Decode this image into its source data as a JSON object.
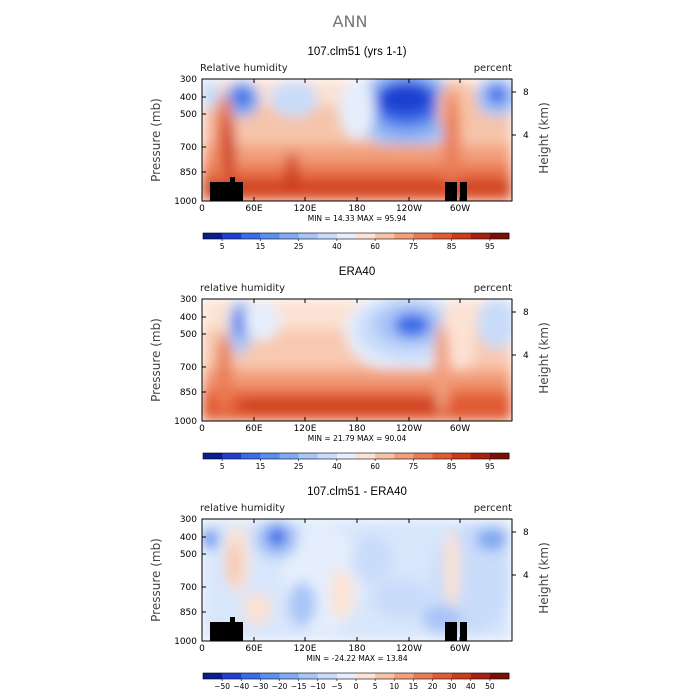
{
  "figure": {
    "title": "ANN"
  },
  "chart_data": [
    {
      "type": "heatmap",
      "title": "107.clm51 (yrs 1-1)",
      "variable_label": "Relative humidity",
      "units_label": "percent",
      "ylabel": "Pressure (mb)",
      "ylabel_right": "Height (km)",
      "x_ticks": [
        "0",
        "60E",
        "120E",
        "180",
        "120W",
        "60W"
      ],
      "y_ticks": [
        "300",
        "400",
        "500",
        "700",
        "850",
        "1000"
      ],
      "y_right_ticks": [
        "8",
        "4"
      ],
      "min_label": "MIN =",
      "min_value": "14.33",
      "max_label": "MAX =",
      "max_value": "95.94",
      "colorbar_labels": [
        "5",
        "15",
        "25",
        "40",
        "60",
        "75",
        "85",
        "95"
      ],
      "colorbar_colors": [
        "#0a1d8f",
        "#1f3fd2",
        "#3b6ce8",
        "#5c8ef0",
        "#82aaf2",
        "#a8c5f7",
        "#c9dcfa",
        "#e5eefc",
        "#fce2d3",
        "#f8c2a4",
        "#f29f7a",
        "#ea7b54",
        "#e05a33",
        "#cc3b1b",
        "#a82110",
        "#7a1008"
      ],
      "mask_boxes": [
        [
          8,
          28,
          19
        ],
        [
          28,
          33,
          24
        ],
        [
          33,
          41,
          19
        ],
        [
          243,
          255,
          19
        ],
        [
          258,
          265,
          19
        ]
      ]
    },
    {
      "type": "heatmap",
      "title": "ERA40",
      "variable_label": "relative humidity",
      "units_label": "percent",
      "ylabel": "Pressure (mb)",
      "ylabel_right": "Height (km)",
      "x_ticks": [
        "0",
        "60E",
        "120E",
        "180",
        "120W",
        "60W"
      ],
      "y_ticks": [
        "300",
        "400",
        "500",
        "700",
        "850",
        "1000"
      ],
      "y_right_ticks": [
        "8",
        "4"
      ],
      "min_label": "MIN =",
      "min_value": "21.79",
      "max_label": "MAX =",
      "max_value": "90.04",
      "colorbar_labels": [
        "5",
        "15",
        "25",
        "40",
        "60",
        "75",
        "85",
        "95"
      ],
      "colorbar_colors": [
        "#0a1d8f",
        "#1f3fd2",
        "#3b6ce8",
        "#5c8ef0",
        "#82aaf2",
        "#a8c5f7",
        "#c9dcfa",
        "#e5eefc",
        "#fce2d3",
        "#f8c2a4",
        "#f29f7a",
        "#ea7b54",
        "#e05a33",
        "#cc3b1b",
        "#a82110",
        "#7a1008"
      ],
      "mask_boxes": []
    },
    {
      "type": "heatmap",
      "title": "107.clm51 - ERA40",
      "variable_label": "relative humidity",
      "units_label": "percent",
      "ylabel": "Pressure (mb)",
      "ylabel_right": "Height (km)",
      "x_ticks": [
        "0",
        "60E",
        "120E",
        "180",
        "120W",
        "60W"
      ],
      "y_ticks": [
        "300",
        "400",
        "500",
        "700",
        "850",
        "1000"
      ],
      "y_right_ticks": [
        "8",
        "4"
      ],
      "min_label": "MIN =",
      "min_value": "-24.22",
      "max_label": "MAX =",
      "max_value": "13.84",
      "colorbar_labels": [
        "−50",
        "−40",
        "−30",
        "−20",
        "−15",
        "−10",
        "−5",
        "0",
        "5",
        "10",
        "15",
        "20",
        "30",
        "40",
        "50"
      ],
      "colorbar_colors": [
        "#0a1d8f",
        "#1f3fd2",
        "#3b6ce8",
        "#5c8ef0",
        "#82aaf2",
        "#a8c5f7",
        "#c9dcfa",
        "#e5eefc",
        "#fce2d3",
        "#f8c2a4",
        "#f29f7a",
        "#ea7b54",
        "#e05a33",
        "#cc3b1b",
        "#a82110",
        "#7a1008"
      ],
      "mask_boxes": [
        [
          8,
          28,
          19
        ],
        [
          28,
          33,
          24
        ],
        [
          33,
          41,
          19
        ],
        [
          243,
          255,
          19
        ],
        [
          258,
          265,
          19
        ]
      ]
    }
  ]
}
